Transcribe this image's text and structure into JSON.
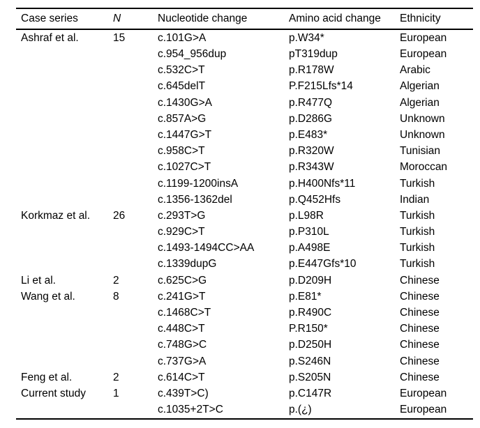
{
  "colors": {
    "background": "#ffffff",
    "text": "#000000",
    "rule": "#000000"
  },
  "table": {
    "headers": [
      "Case series",
      "N",
      "Nucleotide change",
      "Amino acid change",
      "Ethnicity"
    ],
    "rows": [
      [
        "Ashraf et al.",
        "15",
        "c.101G>A",
        "p.W34*",
        "European"
      ],
      [
        "",
        "",
        "c.954_956dup",
        "pT319dup",
        "European"
      ],
      [
        "",
        "",
        "c.532C>T",
        "p.R178W",
        "Arabic"
      ],
      [
        "",
        "",
        "c.645delT",
        "P.F215Lfs*14",
        "Algerian"
      ],
      [
        "",
        "",
        "c.1430G>A",
        "p.R477Q",
        "Algerian"
      ],
      [
        "",
        "",
        "c.857A>G",
        "p.D286G",
        "Unknown"
      ],
      [
        "",
        "",
        "c.1447G>T",
        "p.E483*",
        "Unknown"
      ],
      [
        "",
        "",
        "c.958C>T",
        "p.R320W",
        "Tunisian"
      ],
      [
        "",
        "",
        "c.1027C>T",
        "p.R343W",
        "Moroccan"
      ],
      [
        "",
        "",
        "c.1199-1200insA",
        "p.H400Nfs*11",
        "Turkish"
      ],
      [
        "",
        "",
        "c.1356-1362del",
        "p.Q452Hfs",
        "Indian"
      ],
      [
        "Korkmaz et al.",
        "26",
        "c.293T>G",
        "p.L98R",
        "Turkish"
      ],
      [
        "",
        "",
        "c.929C>T",
        "p.P310L",
        "Turkish"
      ],
      [
        "",
        "",
        "c.1493-1494CC>AA",
        "p.A498E",
        "Turkish"
      ],
      [
        "",
        "",
        "c.1339dupG",
        "p.E447Gfs*10",
        "Turkish"
      ],
      [
        "Li et al.",
        "2",
        "c.625C>G",
        "p.D209H",
        "Chinese"
      ],
      [
        "Wang et al.",
        "8",
        "c.241G>T",
        "p.E81*",
        "Chinese"
      ],
      [
        "",
        "",
        "c.1468C>T",
        "p.R490C",
        "Chinese"
      ],
      [
        "",
        "",
        "c.448C>T",
        "P.R150*",
        "Chinese"
      ],
      [
        "",
        "",
        "c.748G>C",
        "p.D250H",
        "Chinese"
      ],
      [
        "",
        "",
        "c.737G>A",
        "p.S246N",
        "Chinese"
      ],
      [
        "Feng et al.",
        "2",
        "c.614C>T",
        "p.S205N",
        "Chinese"
      ],
      [
        "Current study",
        "1",
        "c.439T>C)",
        "p.C147R",
        "European"
      ],
      [
        "",
        "",
        "c.1035+2T>C",
        "p.(¿)",
        "European"
      ]
    ]
  }
}
